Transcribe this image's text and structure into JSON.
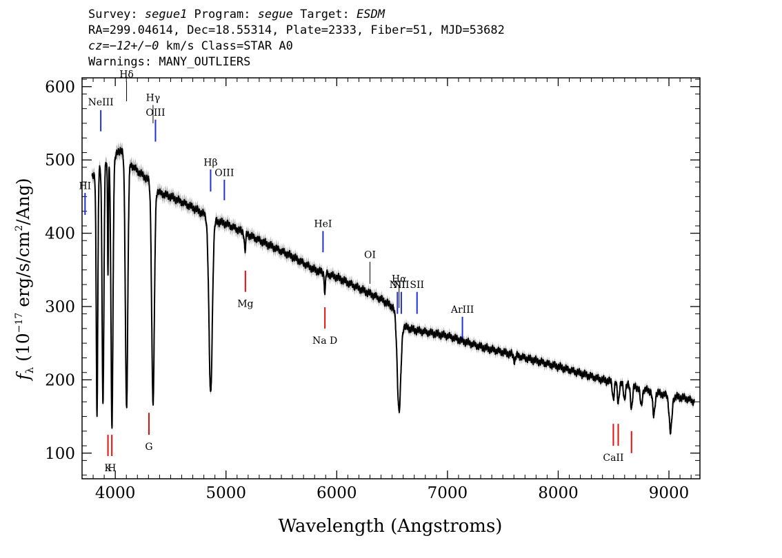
{
  "header": {
    "survey_label": "Survey: ",
    "survey": "segue1",
    "program_label": " Program: ",
    "program": "segue",
    "target_label": " Target: ",
    "target": "ESDM",
    "line2": "RA=299.04614, Dec=18.55314, Plate=2333, Fiber=51, MJD=53682",
    "cz_label": "cz",
    "cz_value": "=−12+/−0",
    "cz_rest": " km/s Class=STAR A0",
    "line4": "Warnings: MANY_OUTLIERS"
  },
  "chart_data": {
    "type": "line",
    "xlabel": "Wavelength (Angstroms)",
    "ylabel": "fλ (10⁻¹⁷ erg/s/cm²/Ang)",
    "xlim": [
      3700,
      9280
    ],
    "ylim": [
      65,
      612
    ],
    "xticks": [
      4000,
      5000,
      6000,
      7000,
      8000,
      9000
    ],
    "yticks": [
      100,
      200,
      300,
      400,
      500,
      600
    ],
    "xtick_labels": [
      "4000",
      "5000",
      "6000",
      "7000",
      "8000",
      "9000"
    ],
    "ytick_labels": [
      "100",
      "200",
      "300",
      "400",
      "500",
      "600"
    ],
    "grid": false,
    "colors": {
      "spectrum": "#000000",
      "error": "#a8a8a8",
      "emission": "#1f2fd0",
      "absorption": "#e01010",
      "balmer": "#000000"
    },
    "continuum": [
      [
        3790,
        475
      ],
      [
        3900,
        495
      ],
      [
        4000,
        505
      ],
      [
        4050,
        515
      ],
      [
        4100,
        500
      ],
      [
        4200,
        485
      ],
      [
        4320,
        470
      ],
      [
        4400,
        455
      ],
      [
        4500,
        450
      ],
      [
        4700,
        435
      ],
      [
        4900,
        417
      ],
      [
        5000,
        413
      ],
      [
        5200,
        398
      ],
      [
        5400,
        383
      ],
      [
        5600,
        368
      ],
      [
        5800,
        350
      ],
      [
        6000,
        340
      ],
      [
        6200,
        325
      ],
      [
        6400,
        310
      ],
      [
        6500,
        300
      ],
      [
        6620,
        272
      ],
      [
        6700,
        268
      ],
      [
        7000,
        260
      ],
      [
        7300,
        245
      ],
      [
        7600,
        234
      ],
      [
        8000,
        218
      ],
      [
        8400,
        200
      ],
      [
        8700,
        190
      ],
      [
        9000,
        178
      ],
      [
        9150,
        175
      ],
      [
        9230,
        170
      ]
    ],
    "absorption_lines": [
      {
        "center": 3835,
        "depth": 0.68,
        "width": 7
      },
      {
        "center": 3889,
        "depth": 0.66,
        "width": 8
      },
      {
        "center": 3934,
        "depth": 0.3,
        "width": 4
      },
      {
        "center": 3970,
        "depth": 0.73,
        "width": 9
      },
      {
        "center": 4102,
        "depth": 0.67,
        "width": 11
      },
      {
        "center": 4341,
        "depth": 0.64,
        "width": 12
      },
      {
        "center": 4861,
        "depth": 0.57,
        "width": 15
      },
      {
        "center": 5172,
        "depth": 0.06,
        "width": 6
      },
      {
        "center": 5893,
        "depth": 0.08,
        "width": 5
      },
      {
        "center": 6563,
        "depth": 0.45,
        "width": 16
      },
      {
        "center": 7605,
        "depth": 0.03,
        "width": 8
      },
      {
        "center": 8498,
        "depth": 0.11,
        "width": 8
      },
      {
        "center": 8542,
        "depth": 0.13,
        "width": 8
      },
      {
        "center": 8598,
        "depth": 0.1,
        "width": 8
      },
      {
        "center": 8662,
        "depth": 0.15,
        "width": 9
      },
      {
        "center": 8750,
        "depth": 0.13,
        "width": 9
      },
      {
        "center": 8863,
        "depth": 0.18,
        "width": 10
      },
      {
        "center": 9015,
        "depth": 0.28,
        "width": 12
      }
    ],
    "annotations": [
      {
        "label": "NeIII",
        "wave": 3869,
        "y1": 539,
        "y2": 568,
        "label_y": 579,
        "color": "emission"
      },
      {
        "label": "HI",
        "wave": 3727,
        "y1": 425,
        "y2": 455,
        "label_y": 465,
        "color": "emission"
      },
      {
        "label": "Hδ",
        "wave": 4102,
        "y1": 580,
        "y2": 607,
        "label_y": 617,
        "color": "balmer"
      },
      {
        "label": "Hγ",
        "wave": 4341,
        "y1": 550,
        "y2": 575,
        "label_y": 585,
        "color": "balmer"
      },
      {
        "label": "OIII",
        "wave": 4363,
        "y1": 525,
        "y2": 555,
        "label_y": 565,
        "color": "emission"
      },
      {
        "label": "Hβ",
        "wave": 4861,
        "y1": 457,
        "y2": 487,
        "label_y": 497,
        "color": "emission"
      },
      {
        "label": "OIII",
        "wave": 4985,
        "y1": 445,
        "y2": 473,
        "label_y": 483,
        "color": "emission"
      },
      {
        "label": "HeI",
        "wave": 5876,
        "y1": 374,
        "y2": 403,
        "label_y": 413,
        "color": "emission"
      },
      {
        "label": "OI",
        "wave": 6300,
        "y1": 331,
        "y2": 361,
        "label_y": 371,
        "color": "balmer"
      },
      {
        "label": "NII",
        "wave": 6548,
        "y1": 290,
        "y2": 320,
        "label_y": 330,
        "color": "emission"
      },
      {
        "label": "Hα",
        "wave": 6563,
        "y1": 298,
        "y2": 328,
        "label_y": 338,
        "color": "balmer"
      },
      {
        "label": "NII",
        "wave": 6583,
        "y1": 290,
        "y2": 320,
        "label_y": 330,
        "color": "emission"
      },
      {
        "label": "SII",
        "wave": 6725,
        "y1": 290,
        "y2": 320,
        "label_y": 330,
        "color": "emission"
      },
      {
        "label": "ArIII",
        "wave": 7135,
        "y1": 257,
        "y2": 286,
        "label_y": 296,
        "color": "emission"
      },
      {
        "label": "K",
        "wave": 3934,
        "y1": 96,
        "y2": 125,
        "label_y": 80,
        "color": "absorption"
      },
      {
        "label": "H",
        "wave": 3969,
        "y1": 96,
        "y2": 125,
        "label_y": 80,
        "color": "absorption"
      },
      {
        "label": "G",
        "wave": 4304,
        "y1": 125,
        "y2": 155,
        "label_y": 109,
        "color": "absorption"
      },
      {
        "label": "Mg",
        "wave": 5175,
        "y1": 320,
        "y2": 349,
        "label_y": 304,
        "color": "absorption"
      },
      {
        "label": "Na D",
        "wave": 5893,
        "y1": 270,
        "y2": 299,
        "label_y": 254,
        "color": "absorption"
      },
      {
        "label": "CaII",
        "wave": 8498,
        "y1": 110,
        "y2": 140,
        "label_y": 94,
        "color": "absorption"
      },
      {
        "label": "",
        "wave": 8542,
        "y1": 110,
        "y2": 140,
        "label_y": 94,
        "color": "absorption"
      },
      {
        "label": "",
        "wave": 8662,
        "y1": 100,
        "y2": 130,
        "label_y": 84,
        "color": "absorption"
      }
    ]
  }
}
